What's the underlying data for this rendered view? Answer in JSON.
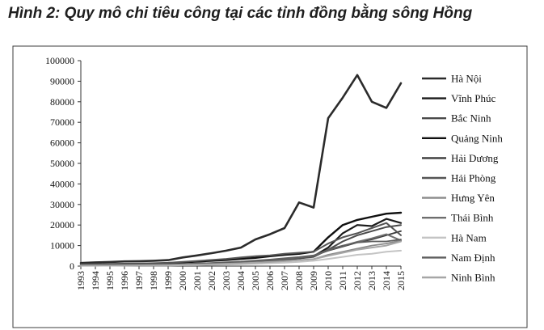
{
  "figure_title": "Hình 2: Quy mô chi tiêu công tại các tỉnh đồng bằng sông Hồng",
  "chart_data": {
    "type": "line",
    "title": "",
    "xlabel": "",
    "ylabel": "",
    "ylim": [
      0,
      100000
    ],
    "y_ticks": [
      0,
      10000,
      20000,
      30000,
      40000,
      50000,
      60000,
      70000,
      80000,
      90000,
      100000
    ],
    "y_tick_labels": [
      "0",
      "10000",
      "20000",
      "30000",
      "40000",
      "50000",
      "60000",
      "70000",
      "80000",
      "90000",
      "100000"
    ],
    "x": [
      "1993",
      "1994",
      "1995",
      "1996",
      "1997",
      "1998",
      "1999",
      "2000",
      "2001",
      "2002",
      "2003",
      "2004",
      "2005",
      "2006",
      "2007",
      "2008",
      "2009",
      "2010",
      "2011",
      "2012",
      "2013",
      "2014",
      "2015"
    ],
    "grid": false,
    "legend_position": "right",
    "series": [
      {
        "name": "Hà Nội",
        "color": "#2b2b2b",
        "width": 2.6,
        "values": [
          1500,
          1800,
          2000,
          2300,
          2400,
          2600,
          2900,
          4200,
          5200,
          6300,
          7500,
          9000,
          13000,
          15500,
          18500,
          31000,
          28500,
          72000,
          82000,
          93000,
          80000,
          77000,
          89000
        ]
      },
      {
        "name": "Vĩnh Phúc",
        "color": "#1a1a1a",
        "width": 2.2,
        "values": [
          300,
          350,
          400,
          450,
          500,
          550,
          600,
          800,
          1000,
          1200,
          1400,
          1700,
          2000,
          2500,
          3000,
          3800,
          4800,
          9000,
          16000,
          20000,
          19500,
          23000,
          21000
        ]
      },
      {
        "name": "Bắc Ninh",
        "color": "#4a4a4a",
        "width": 2.0,
        "values": [
          250,
          300,
          350,
          400,
          450,
          500,
          550,
          700,
          900,
          1100,
          1300,
          1600,
          2000,
          2500,
          3000,
          3700,
          4500,
          8000,
          12000,
          15000,
          17000,
          19000,
          20000
        ]
      },
      {
        "name": "Quảng Ninh",
        "color": "#0f0f0f",
        "width": 2.4,
        "values": [
          700,
          800,
          900,
          1000,
          1100,
          1200,
          1400,
          1800,
          2200,
          2600,
          3000,
          3500,
          4000,
          4800,
          5500,
          6000,
          7000,
          14000,
          20000,
          22500,
          24000,
          25500,
          26000
        ]
      },
      {
        "name": "Hải Dương",
        "color": "#3a3a3a",
        "width": 1.8,
        "values": [
          400,
          450,
          500,
          550,
          600,
          650,
          750,
          950,
          1150,
          1350,
          1600,
          1900,
          2400,
          2900,
          3500,
          4200,
          5000,
          7500,
          9500,
          11500,
          13000,
          15000,
          17000
        ]
      },
      {
        "name": "Hải Phòng",
        "color": "#555555",
        "width": 2.0,
        "values": [
          900,
          1000,
          1100,
          1200,
          1300,
          1400,
          1600,
          2100,
          2500,
          3000,
          3500,
          4200,
          4800,
          5200,
          6000,
          6500,
          7000,
          11000,
          14000,
          16000,
          18500,
          21000,
          15000
        ]
      },
      {
        "name": "Hưng Yên",
        "color": "#8a8a8a",
        "width": 1.8,
        "values": [
          250,
          280,
          320,
          360,
          400,
          450,
          500,
          650,
          800,
          950,
          1100,
          1300,
          1600,
          2000,
          2400,
          2900,
          3400,
          5500,
          7000,
          8500,
          10000,
          11000,
          12500
        ]
      },
      {
        "name": "Thái Bình",
        "color": "#6e6e6e",
        "width": 2.0,
        "values": [
          400,
          450,
          500,
          550,
          600,
          650,
          750,
          950,
          1150,
          1400,
          1700,
          2000,
          2500,
          3000,
          3600,
          4200,
          5000,
          7800,
          9800,
          11800,
          13500,
          15500,
          12500
        ]
      },
      {
        "name": "Hà Nam",
        "color": "#c4c4c4",
        "width": 2.0,
        "values": [
          150,
          170,
          200,
          230,
          260,
          290,
          330,
          420,
          520,
          620,
          750,
          900,
          1100,
          1400,
          1700,
          2100,
          2600,
          3500,
          4500,
          5500,
          6000,
          7000,
          7500
        ]
      },
      {
        "name": "Nam Định",
        "color": "#5e5e5e",
        "width": 1.8,
        "values": [
          500,
          550,
          600,
          650,
          700,
          750,
          850,
          1050,
          1300,
          1550,
          1850,
          2200,
          2700,
          3200,
          3800,
          4400,
          5200,
          8000,
          10000,
          11500,
          12000,
          12000,
          13000
        ]
      },
      {
        "name": "Ninh Bình",
        "color": "#a6a6a6",
        "width": 2.0,
        "values": [
          250,
          280,
          320,
          360,
          400,
          450,
          500,
          650,
          800,
          950,
          1150,
          1350,
          1650,
          2000,
          2400,
          2900,
          3400,
          5000,
          6500,
          8000,
          9000,
          10000,
          12000
        ]
      }
    ]
  }
}
